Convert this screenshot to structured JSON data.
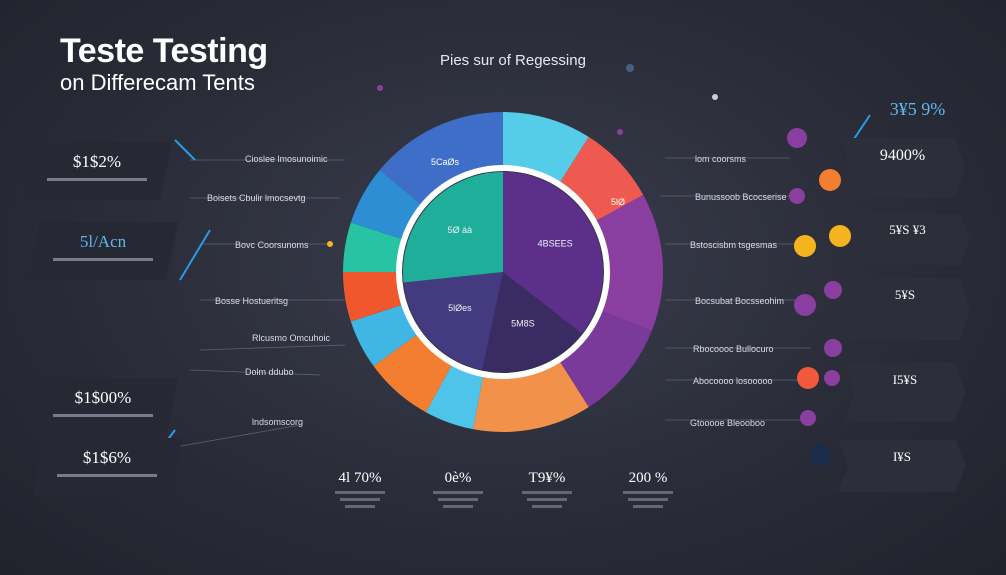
{
  "header": {
    "title": "Teste Testing",
    "subtitle": "on Differecam Tents"
  },
  "chart_data": {
    "type": "pie",
    "title": "Pies sur of Regessing",
    "outer_ring": [
      {
        "value": 9,
        "color": "#56cde8"
      },
      {
        "value": 8,
        "color": "#ef5a50"
      },
      {
        "value": 14,
        "color": "#8a3fa0"
      },
      {
        "value": 10,
        "color": "#7a3a9a"
      },
      {
        "value": 12,
        "color": "#f2924a"
      },
      {
        "value": 5,
        "color": "#4fc4ea"
      },
      {
        "value": 7,
        "color": "#f47e2f"
      },
      {
        "value": 5,
        "color": "#3fb6e3"
      },
      {
        "value": 5,
        "color": "#f0572d"
      },
      {
        "value": 5,
        "color": "#27c3a3"
      },
      {
        "value": 6,
        "color": "#2e8ed4"
      },
      {
        "value": 14,
        "color": "#3f6ec8"
      }
    ],
    "inner_pie": [
      {
        "value": 32,
        "color": "#5b2f8a",
        "label": "4BSEES"
      },
      {
        "value": 16,
        "color": "#3a2c63",
        "label": "5M8S"
      },
      {
        "value": 18,
        "color": "#443a80",
        "label": "5lØes"
      },
      {
        "value": 24,
        "color": "#1fae9a",
        "label": "5Ø àà"
      }
    ],
    "outer_labels": [
      "5CaØs",
      "5lØ"
    ]
  },
  "left_cards": [
    "$1$2%",
    "5l/Acn",
    "$1$00%",
    "$1$6%"
  ],
  "left_labels": [
    "Cioslee lmosunoimic",
    "Boisets Cbulir lmocsevtg",
    "Bovc Coorsunoms",
    "Bosse Hostueritsg",
    "Rlcusmo Omcuhoic",
    "Dolm ddubo",
    "lndsomscorg"
  ],
  "right_cards": [
    "3¥5 9%",
    "9400%",
    "5¥S ¥3",
    "5¥S",
    "I5¥S",
    "I¥S"
  ],
  "right_labels": [
    "lom coorsms",
    "Bunussoob Bcocserise",
    "Bstoscisbm tsgesmas",
    "Bocsubat Bocsseohim",
    "Rbocoooc Bullocuro",
    "Abocoooo losooooo",
    "Gtooooe Bleooboo"
  ],
  "bottom_stats": [
    "4l 70%",
    "0è%",
    "T9¥%",
    "200 %"
  ],
  "colors": {
    "accent": "#2a9be8",
    "bg": "#2a2c38"
  }
}
